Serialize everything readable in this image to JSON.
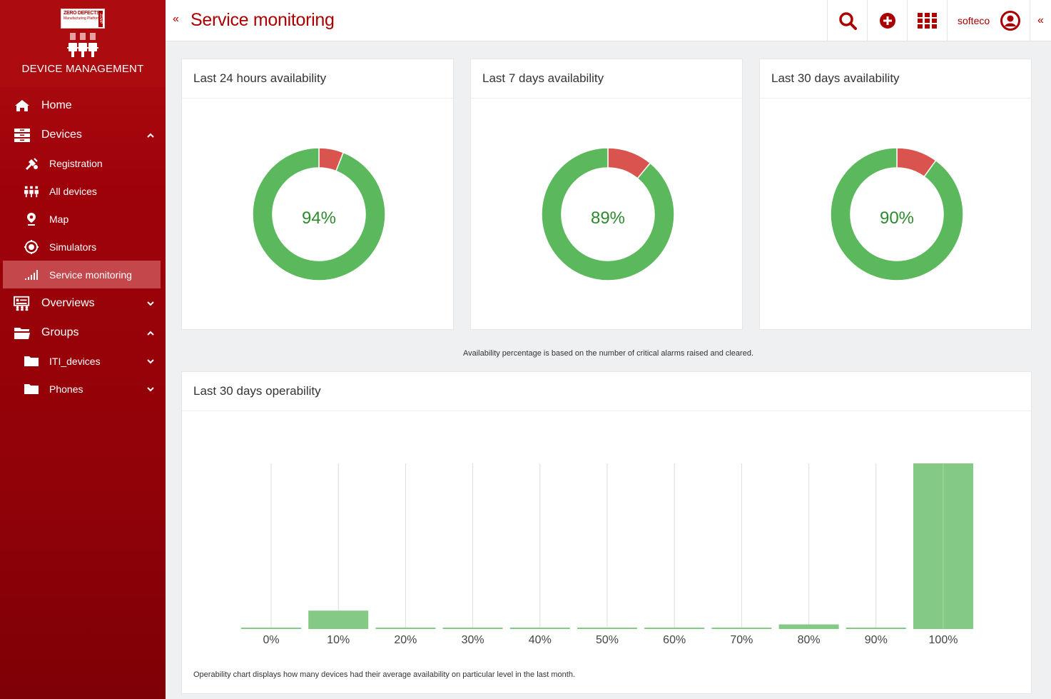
{
  "brand": {
    "logo_line1": "ZERO DEFECTS",
    "logo_line2": "Manufacturing Platform",
    "logo_side": "ZDMP",
    "title": "DEVICE MANAGEMENT"
  },
  "sidebar": {
    "items": [
      {
        "label": "Home",
        "icon": "home-icon"
      },
      {
        "label": "Devices",
        "icon": "devices-icon",
        "expanded": true
      },
      {
        "label": "Registration",
        "icon": "registration-icon"
      },
      {
        "label": "All devices",
        "icon": "all-devices-icon"
      },
      {
        "label": "Map",
        "icon": "map-pin-icon"
      },
      {
        "label": "Simulators",
        "icon": "simulators-icon"
      },
      {
        "label": "Service monitoring",
        "icon": "signal-bars-icon",
        "active": true
      },
      {
        "label": "Overviews",
        "icon": "overviews-icon",
        "expanded": false
      },
      {
        "label": "Groups",
        "icon": "folder-open-icon",
        "expanded": true
      },
      {
        "label": "ITI_devices",
        "icon": "folder-icon",
        "expanded": false
      },
      {
        "label": "Phones",
        "icon": "folder-icon",
        "expanded": false
      }
    ]
  },
  "header": {
    "title": "Service monitoring",
    "user": "softeco",
    "collapse_glyph": "«"
  },
  "availability": [
    {
      "title": "Last 24 hours availability",
      "percent": 94,
      "label": "94%"
    },
    {
      "title": "Last 7 days availability",
      "percent": 89,
      "label": "89%"
    },
    {
      "title": "Last 30 days availability",
      "percent": 90,
      "label": "90%"
    }
  ],
  "availability_note": "Availability percentage is based on the number of critical alarms raised and cleared.",
  "operability": {
    "title": "Last 30 days operability",
    "note": "Operability chart displays how many devices had their average availability on particular level in the last month."
  },
  "colors": {
    "brand_red": "#a00000",
    "available_green": "#5cb85c",
    "unavailable_red": "#d9534f",
    "bar_green": "#84c984"
  },
  "chart_data": [
    {
      "type": "pie",
      "title": "Last 24 hours availability",
      "values": [
        94,
        6
      ],
      "colors": [
        "#5cb85c",
        "#d9534f"
      ]
    },
    {
      "type": "pie",
      "title": "Last 7 days availability",
      "values": [
        89,
        11
      ],
      "colors": [
        "#5cb85c",
        "#d9534f"
      ]
    },
    {
      "type": "pie",
      "title": "Last 30 days availability",
      "values": [
        90,
        10
      ],
      "colors": [
        "#5cb85c",
        "#d9534f"
      ]
    },
    {
      "type": "bar",
      "title": "Last 30 days operability",
      "categories": [
        "0%",
        "10%",
        "20%",
        "30%",
        "40%",
        "50%",
        "60%",
        "70%",
        "80%",
        "90%",
        "100%"
      ],
      "values": [
        0,
        2,
        0,
        0,
        0,
        0,
        0,
        0,
        0.5,
        0,
        18
      ],
      "ylim": [
        0,
        18
      ],
      "grid": true
    }
  ]
}
